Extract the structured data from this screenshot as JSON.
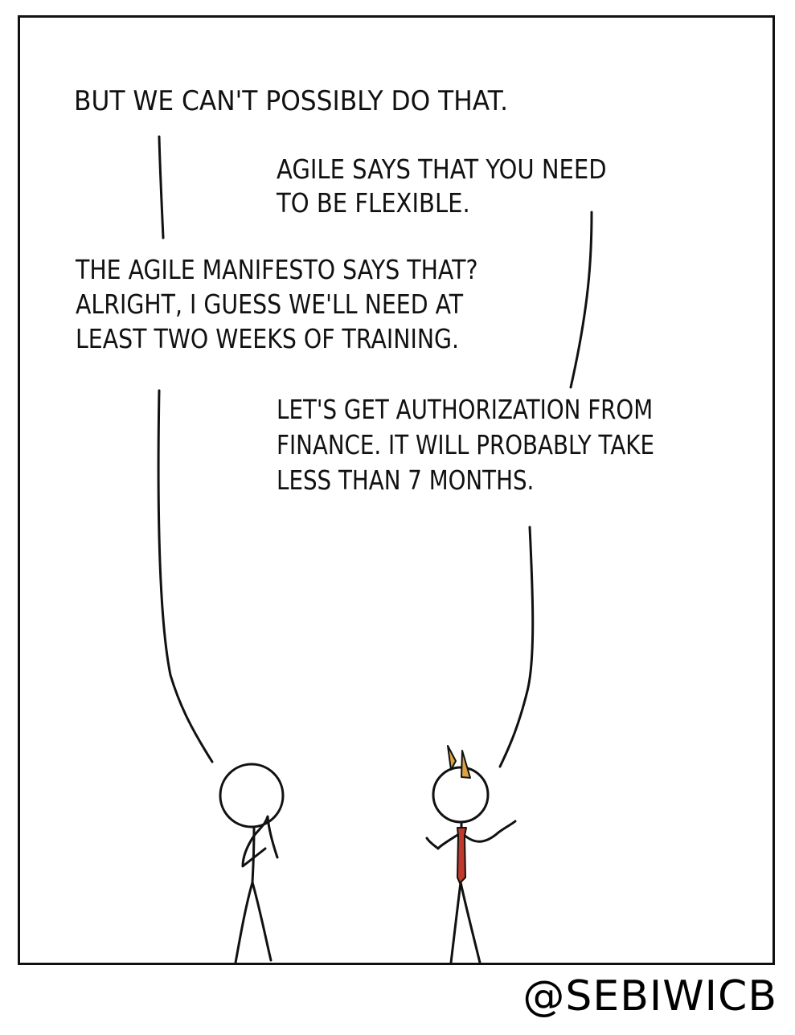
{
  "comic": {
    "lines": [
      "BUT WE CAN'T POSSIBLY DO THAT.",
      "AGILE SAYS THAT YOU NEED\nTO BE FLEXIBLE.",
      "THE AGILE MANIFESTO SAYS THAT?\nALRIGHT, I GUESS WE'LL NEED AT\nLEAST TWO WEEKS OF TRAINING.",
      "LET'S GET AUTHORIZATION FROM\nFINANCE. IT WILL PROBABLY TAKE\nLESS THAN 7 MONTHS."
    ],
    "credit": "@SEBIWICB"
  },
  "colors": {
    "ink": "#111111",
    "tie": "#c0392b",
    "hair": "#d9a441",
    "paper": "#ffffff"
  }
}
